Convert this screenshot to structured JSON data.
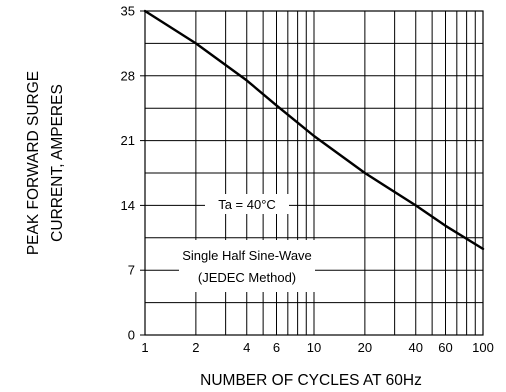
{
  "chart_data": {
    "type": "line",
    "title": "",
    "xlabel": "NUMBER OF CYCLES AT 60Hz",
    "ylabel_lines": [
      "PEAK FORWARD SURGE",
      "CURRENT, AMPERES"
    ],
    "x_scale": "log",
    "xlim": [
      1,
      100
    ],
    "ylim": [
      0,
      35
    ],
    "x_ticks": [
      1,
      2,
      4,
      6,
      10,
      20,
      40,
      60,
      100
    ],
    "x_tick_labels": [
      "1",
      "2",
      "4",
      "6",
      "10",
      "20",
      "40",
      "60",
      "100"
    ],
    "y_ticks": [
      0,
      7,
      14,
      21,
      28,
      35
    ],
    "y_tick_labels": [
      "0",
      "7",
      "14",
      "21",
      "28",
      "35"
    ],
    "grid": true,
    "series": [
      {
        "x": [
          1,
          2,
          4,
          6,
          10,
          20,
          40,
          60,
          100
        ],
        "y": [
          35,
          31.5,
          27.5,
          24.8,
          21.5,
          17.5,
          14.0,
          11.8,
          9.3
        ]
      }
    ],
    "annotations": [
      {
        "text": "Ta = 40°C"
      },
      {
        "text_lines": [
          "Single Half Sine-Wave",
          "(JEDEC Method)"
        ]
      }
    ],
    "line_color": "#000000",
    "grid_color": "#000000"
  }
}
